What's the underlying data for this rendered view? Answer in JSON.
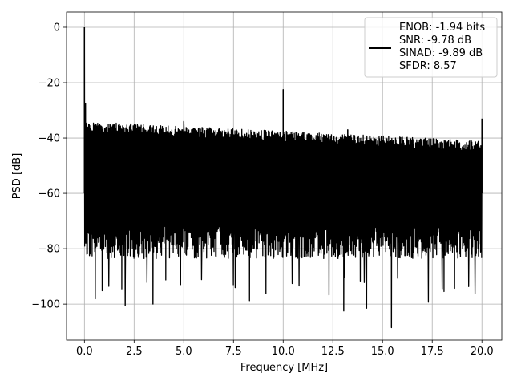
{
  "chart_data": {
    "type": "line",
    "xlabel": "Frequency [MHz]",
    "ylabel": "PSD [dB]",
    "xlim": [
      -0.9,
      21.0
    ],
    "ylim": [
      -113,
      5.5
    ],
    "grid": true,
    "xticks": [
      0.0,
      2.5,
      5.0,
      7.5,
      10.0,
      12.5,
      15.0,
      17.5,
      20.0
    ],
    "xtick_labels": [
      "0.0",
      "2.5",
      "5.0",
      "7.5",
      "10.0",
      "12.5",
      "15.0",
      "17.5",
      "20.0"
    ],
    "yticks": [
      0,
      -20,
      -40,
      -60,
      -80,
      -100
    ],
    "ytick_labels": [
      "0",
      "−20",
      "−40",
      "−60",
      "−80",
      "−100"
    ],
    "legend_position": "top-right",
    "series": [
      {
        "name": "ENOB: -1.94 bits\nSNR: -9.78 dB\nSINAD: -9.89 dB\nSFDR: 8.57",
        "color": "#000000",
        "x_range": [
          0.0,
          20.0
        ],
        "noise_envelope": {
          "upper_start_db": -34,
          "upper_end_db": -41,
          "lower_typical_db": -80,
          "lower_min_db": -108
        },
        "peaks": [
          {
            "x": 0.0,
            "y": 0.0
          },
          {
            "x": 0.05,
            "y": -27.5
          },
          {
            "x": 5.0,
            "y": -34.0
          },
          {
            "x": 10.0,
            "y": -22.5
          },
          {
            "x": 13.25,
            "y": -37.0
          },
          {
            "x": 20.0,
            "y": -33.0
          }
        ],
        "dips": [
          {
            "x": 2.05,
            "y": -100.5
          },
          {
            "x": 3.45,
            "y": -100.0
          },
          {
            "x": 13.05,
            "y": -102.5
          },
          {
            "x": 14.2,
            "y": -101.5
          },
          {
            "x": 15.45,
            "y": -108.5
          },
          {
            "x": 18.0,
            "y": -94.5
          }
        ]
      }
    ]
  },
  "legend": {
    "lines": [
      "ENOB: -1.94 bits",
      "SNR: -9.78 dB",
      "SINAD: -9.89 dB",
      "SFDR: 8.57"
    ]
  }
}
